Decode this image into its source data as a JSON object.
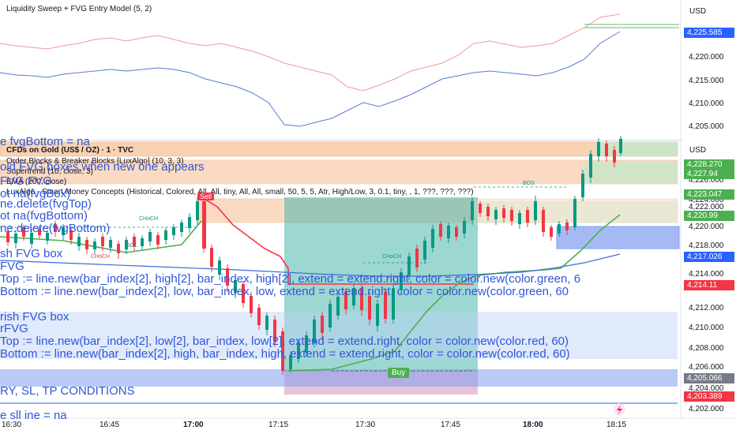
{
  "top_pane": {
    "title": "Liquidity Sweep + FVG Entry Model (5, 2)",
    "currency": "USD",
    "last_tag": "4,225.585",
    "ticks": [
      "4,220.000",
      "4,215.000",
      "4,210.000",
      "4,205.000"
    ]
  },
  "main_pane": {
    "symbol": "CFDs on Gold (US$ / OZ) · 1 · TVC",
    "indicators": [
      "Order Blocks & Breaker Blocks [LuxAlgo] (10, 3, 3)",
      "Supertrend (10, close, 3)",
      "EMA (200, close)",
      "LuxAlgo - Smart Money Concepts (Historical, Colored, All, All, tiny, All, All, small, 50, 5, 5, Atr, High/Low, 3, 0.1, tiny, , 1, ???, ???, ???)"
    ],
    "currency": "USD",
    "ticks": [
      "4,226.000",
      "4,224.000",
      "4,222.000",
      "4,220.000",
      "4,218.000",
      "4,214.000",
      "4,212.000",
      "4,210.000",
      "4,208.000",
      "4,206.000",
      "4,204.000",
      "4,202.000"
    ],
    "tags": [
      {
        "value": "4,228.270",
        "color": "#4caf50"
      },
      {
        "value": "4,227.94",
        "color": "#4caf50"
      },
      {
        "value": "4,223.047",
        "color": "#4caf50"
      },
      {
        "value": "4,220.99",
        "color": "#4caf50"
      },
      {
        "value": "4,217.026",
        "color": "#2962ff"
      },
      {
        "value": "4,214.11",
        "color": "#f23645"
      },
      {
        "value": "4,205.066",
        "color": "#787b86"
      },
      {
        "value": "4,203.389",
        "color": "#f23645"
      }
    ],
    "labels": {
      "sell": "Sell",
      "buy": "Buy",
      "choch": "CHoCH",
      "bos": "BOS",
      "sol": "SOL"
    }
  },
  "code_overlay": [
    "e fvgBottom = na",
    "old FVG boxes when new one appears",
    "FVG            FVG",
    "ot na(fvgBox)",
    "ne.delete(fvgTop)",
    "ot na(fvgBottom)",
    "ne.delete(fvgBottom)",
    "sh FVG box",
    "FVG",
    "Top    := line.new(bar_index[2], high[2],  bar_index, high[2], extend = extend.right, color = color.new(color.green, 6",
    "Bottom := line.new(bar_index[2], low,  bar_index, low,     extend = extend.right, color = color.new(color.green, 60",
    "rish FVG box",
    "rFVG",
    "Top     := line.new(bar_index[2], low[2],  bar_index, low[2],   extend = extend.right, color = color.new(color.red, 60)",
    "Bottom := line.new(bar_index[2], high,     bar_index, high,     extend = extend.right, color = color.new(color.red, 60)",
    "RY, SL, TP CONDITIONS",
    "e sll ine = na"
  ],
  "x_axis": [
    "16:30",
    "16:45",
    "17:00",
    "17:15",
    "17:30",
    "17:45",
    "18:00",
    "18:15"
  ]
}
